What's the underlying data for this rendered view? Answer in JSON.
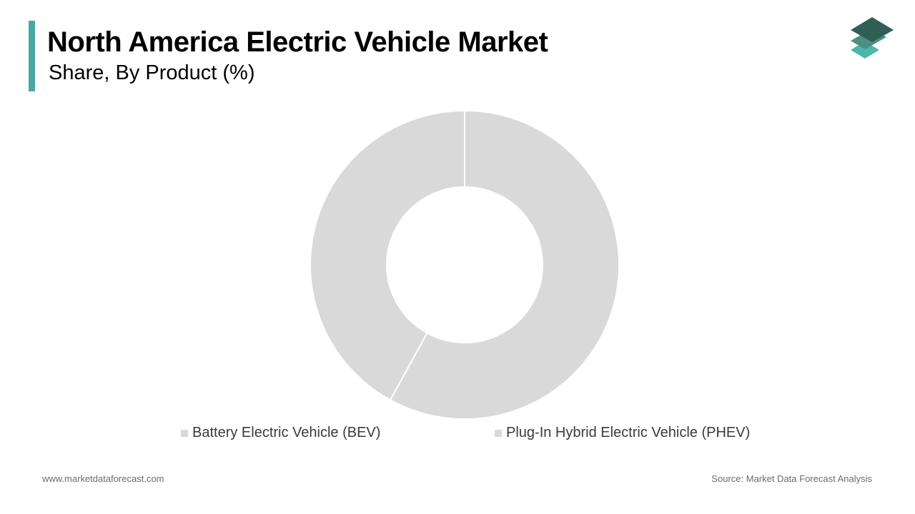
{
  "header": {
    "title": "North America Electric Vehicle Market",
    "subtitle": "Share, By Product (%)",
    "accent_color": "#4aa8a4"
  },
  "logo": {
    "icon": "stacked-layers-logo-icon"
  },
  "chart_data": {
    "type": "donut",
    "title": "North America Electric Vehicle Market",
    "subtitle": "Share, By Product (%)",
    "categories": [
      "Battery Electric Vehicle (BEV)",
      "Plug-In Hybrid Electric Vehicle (PHEV)"
    ],
    "values": [
      58,
      42
    ],
    "colors": [
      "#d9d9d9",
      "#d9d9d9"
    ],
    "separator_color": "#ffffff",
    "legend_position": "bottom",
    "grid": false
  },
  "footer": {
    "website": "www.marketdataforecast.com",
    "source": "Source: Market Data Forecast Analysis"
  }
}
